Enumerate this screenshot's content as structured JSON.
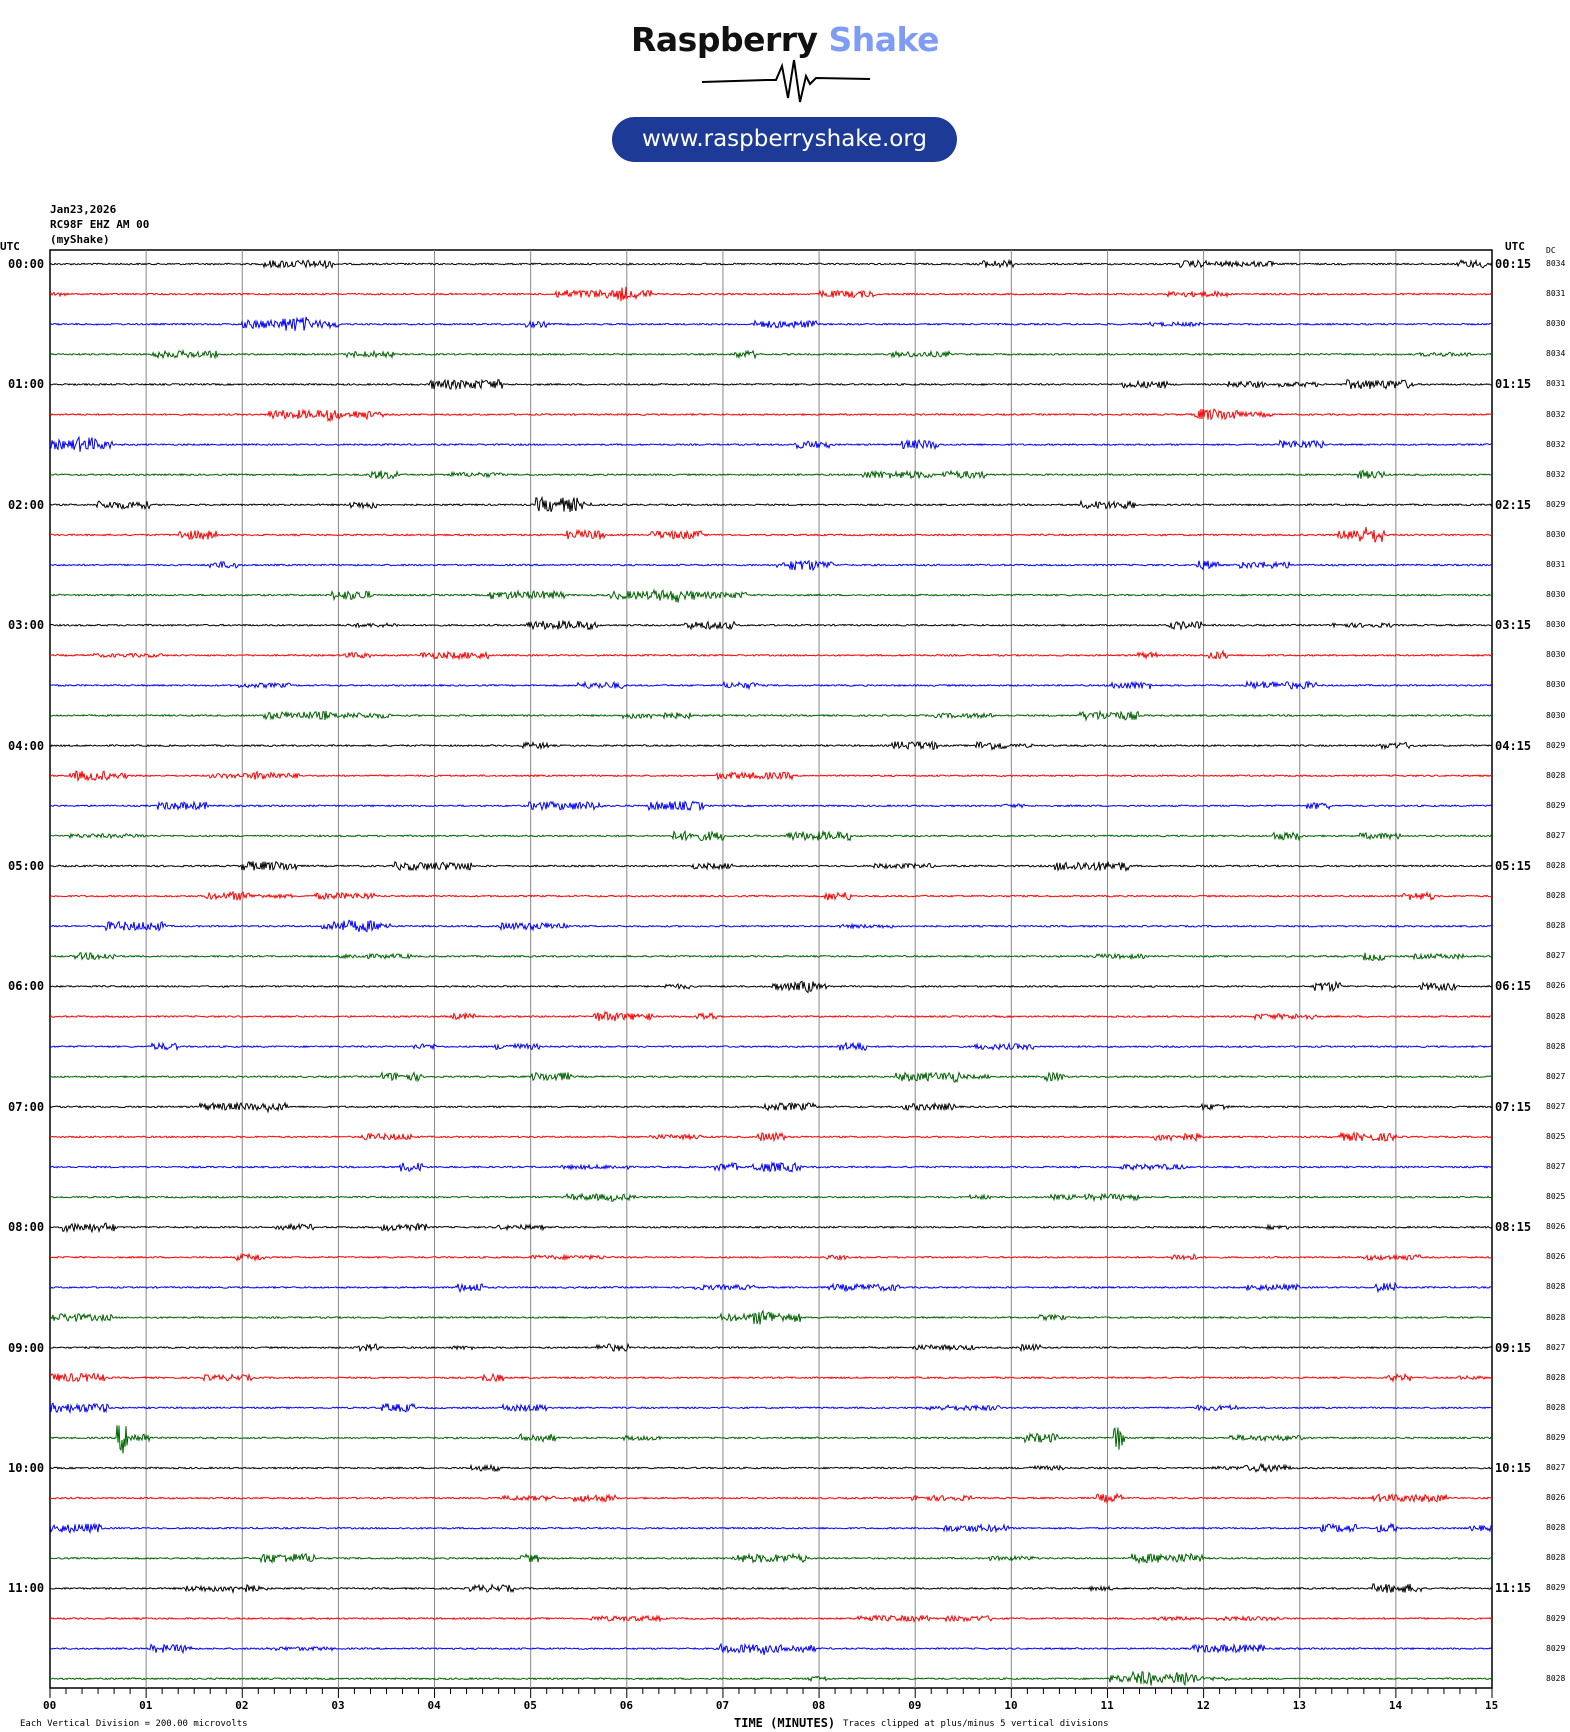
{
  "logo": {
    "word1": "Raspberry",
    "word2": "Shake",
    "url": "www.raspberryshake.org",
    "accent": "#7f9cf5",
    "pill_color": "#1c3a96"
  },
  "header": {
    "date": "Jan23,2026",
    "station": "RC98F EHZ AM 00",
    "network": "(myShake)"
  },
  "left_axis_title": "UTC",
  "right_axis_title": "UTC",
  "dc_title": "DC",
  "chart_data": {
    "type": "line",
    "title": "",
    "xlabel": "TIME (MINUTES)",
    "xlim": [
      0,
      15
    ],
    "x_tick_labels": [
      "00",
      "01",
      "02",
      "03",
      "04",
      "05",
      "06",
      "07",
      "08",
      "09",
      "10",
      "11",
      "12",
      "13",
      "14",
      "15"
    ],
    "trace_colors": [
      "#000000",
      "#ff0000",
      "#0000ff",
      "#006400"
    ],
    "grid": "vertical every minute",
    "left_labels": [
      "00:00",
      "01:00",
      "02:00",
      "03:00",
      "04:00",
      "05:00",
      "06:00",
      "07:00",
      "08:00",
      "09:00",
      "10:00",
      "11:00"
    ],
    "right_labels": [
      "00:15",
      "01:15",
      "02:15",
      "03:15",
      "04:15",
      "05:15",
      "06:15",
      "07:15",
      "08:15",
      "09:15",
      "10:15",
      "11:15"
    ],
    "dc_values": [
      8034,
      8031,
      8030,
      8034,
      8031,
      8032,
      8032,
      8032,
      8029,
      8030,
      8031,
      8030,
      8030,
      8030,
      8030,
      8030,
      8029,
      8028,
      8029,
      8027,
      8028,
      8028,
      8028,
      8027,
      8026,
      8028,
      8028,
      8027,
      8027,
      8025,
      8027,
      8025,
      8026,
      8026,
      8028,
      8028,
      8027,
      8028,
      8028,
      8029,
      8027,
      8026,
      8028,
      8028,
      8029,
      8029,
      8029,
      8028
    ],
    "events": [
      {
        "row": 40,
        "minute": 0.75
      },
      {
        "row": 40,
        "minute": 11.12
      }
    ]
  },
  "footer": {
    "scale": "Each Vertical Division =  200.00 microvolts",
    "clip": "Traces clipped at plus/minus 5 vertical divisions"
  }
}
